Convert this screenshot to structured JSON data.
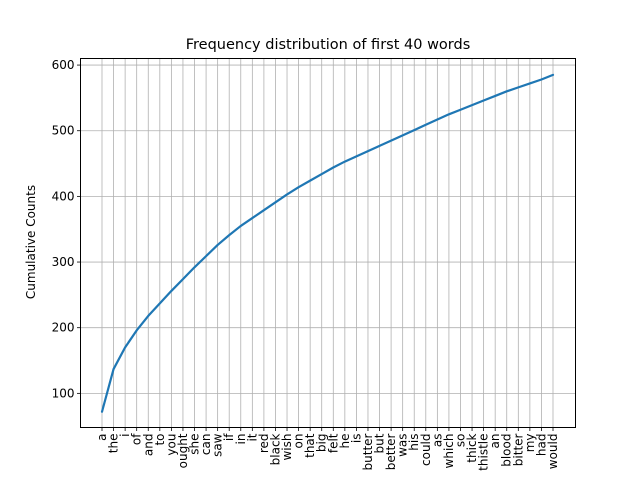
{
  "chart_data": {
    "type": "line",
    "title": "Frequency distribution of first 40 words",
    "xlabel": "",
    "ylabel": "Cumulative Counts",
    "ylim": [
      48,
      610
    ],
    "yticks": [
      100,
      200,
      300,
      400,
      500,
      600
    ],
    "grid": true,
    "categories": [
      "a",
      "the",
      "i",
      "of",
      "and",
      "to",
      "you",
      "ought",
      "she",
      "can",
      "saw",
      "if",
      "in",
      "it",
      "red",
      "black",
      "wish",
      "on",
      "that",
      "big",
      "felt",
      "he",
      "is",
      "butter",
      "but",
      "better",
      "was",
      "his",
      "could",
      "as",
      "which",
      "so",
      "thick",
      "thistle",
      "an",
      "blood",
      "bitter",
      "my",
      "had",
      "would"
    ],
    "values": [
      72,
      137,
      170,
      196,
      218,
      237,
      256,
      274,
      292,
      309,
      326,
      341,
      355,
      367,
      379,
      391,
      403,
      414,
      424,
      434,
      444,
      453,
      461,
      469,
      477,
      485,
      493,
      501,
      509,
      517,
      525,
      532,
      539,
      546,
      553,
      560,
      566,
      572,
      578,
      585
    ],
    "line_color": "#1f77b4"
  }
}
